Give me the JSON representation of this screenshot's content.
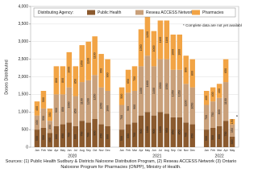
{
  "chart_data": {
    "type": "stacked_bar",
    "y_label": "Doses Distributed",
    "legend_title": "Distributing Agency:",
    "note": "* Complete data are not yet available",
    "note_marker": "*",
    "source": "Sources:  (1) Public Health Sudbury & Districts Naloxone Distribution Program, (2) Reseau ACCESS Network (3) Ontario Naloxone Program for Pharmacies (ONPP), Ministry of Health.",
    "categories": [
      "Jan",
      "Feb",
      "Mar",
      "Apr",
      "May",
      "Jun",
      "Jul",
      "Aug",
      "Sep",
      "Oct",
      "Nov",
      "Dec",
      "Jan",
      "Feb",
      "Mar",
      "Apr",
      "May",
      "Jun",
      "Jul",
      "Aug",
      "Sep",
      "Oct",
      "Nov",
      "Dec",
      "Jan",
      "Feb",
      "Mar",
      "Apr",
      "May"
    ],
    "years": [
      "2020",
      "2021",
      "2022"
    ],
    "series": [
      {
        "name": "Public Health",
        "color": "#8b5a2e",
        "values": [
          500,
          550,
          400,
          600,
          650,
          700,
          600,
          750,
          700,
          800,
          650,
          600,
          500,
          650,
          700,
          900,
          1000,
          900,
          1000,
          950,
          850,
          850,
          700,
          650,
          500,
          550,
          600,
          750,
          300
        ]
      },
      {
        "name": "Reseau ACCESS Network",
        "color": "#c9a07a",
        "values": [
          400,
          550,
          350,
          900,
          850,
          1000,
          850,
          1100,
          1200,
          1250,
          1050,
          1000,
          700,
          900,
          900,
          1400,
          1600,
          1400,
          1500,
          1550,
          1350,
          1350,
          1100,
          1050,
          700,
          750,
          800,
          1100,
          350
        ]
      },
      {
        "name": "Pharmacies",
        "color": "#f2a445",
        "values": [
          400,
          500,
          350,
          800,
          800,
          1000,
          850,
          1050,
          1100,
          1100,
          950,
          900,
          500,
          650,
          700,
          1050,
          1200,
          1000,
          1100,
          1100,
          1000,
          1000,
          800,
          800,
          400,
          400,
          400,
          650,
          150
        ]
      }
    ],
    "ylim": [
      0,
      4000
    ],
    "yticks": [
      0,
      500,
      {
        "value": 1000,
        "label": "1,000"
      },
      {
        "value": 1500,
        "label": "1,500"
      },
      {
        "value": 2000,
        "label": "2,000"
      },
      {
        "value": 2500,
        "label": "2,500"
      },
      {
        "value": 3000,
        "label": "3,000"
      },
      {
        "value": 3500,
        "label": "3,500"
      },
      {
        "value": 4000,
        "label": "4,000"
      }
    ],
    "grid": true
  }
}
